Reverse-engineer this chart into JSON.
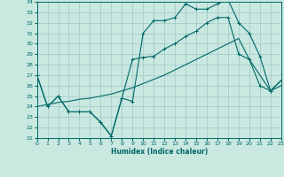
{
  "xlabel": "Humidex (Indice chaleur)",
  "bg_color": "#c8e8e0",
  "grid_color": "#a0c8c8",
  "line_color": "#006868",
  "xlim": [
    0,
    23
  ],
  "ylim": [
    21,
    34
  ],
  "xticks": [
    0,
    1,
    2,
    3,
    4,
    5,
    6,
    7,
    8,
    9,
    10,
    11,
    12,
    13,
    14,
    15,
    16,
    17,
    18,
    19,
    20,
    21,
    22,
    23
  ],
  "yticks": [
    21,
    22,
    23,
    24,
    25,
    26,
    27,
    28,
    29,
    30,
    31,
    32,
    33,
    34
  ],
  "line1_x": [
    0,
    1,
    2,
    3,
    4,
    5,
    6,
    7,
    8,
    9,
    10,
    11,
    12,
    13,
    14,
    15,
    16,
    17,
    18,
    19,
    20,
    21,
    22,
    23
  ],
  "line1_y": [
    27.0,
    24.0,
    25.0,
    23.5,
    23.5,
    23.5,
    22.5,
    21.2,
    24.8,
    24.5,
    31.0,
    32.2,
    32.2,
    32.5,
    33.8,
    33.3,
    33.3,
    33.8,
    34.2,
    32.0,
    31.0,
    28.8,
    25.5,
    26.5
  ],
  "line2_x": [
    0,
    1,
    2,
    3,
    4,
    5,
    6,
    7,
    8,
    9,
    10,
    11,
    12,
    13,
    14,
    15,
    16,
    17,
    18,
    19,
    20,
    21,
    22,
    23
  ],
  "line2_y": [
    24.0,
    24.2,
    24.4,
    24.5,
    24.7,
    24.8,
    25.0,
    25.2,
    25.5,
    25.8,
    26.2,
    26.6,
    27.0,
    27.5,
    28.0,
    28.5,
    29.0,
    29.5,
    30.0,
    30.5,
    28.5,
    27.0,
    25.5,
    26.0
  ],
  "line3_x": [
    0,
    1,
    2,
    3,
    4,
    5,
    6,
    7,
    8,
    9,
    10,
    11,
    12,
    13,
    14,
    15,
    16,
    17,
    18,
    19,
    20,
    21,
    22,
    23
  ],
  "line3_y": [
    27.0,
    24.0,
    25.0,
    23.5,
    23.5,
    23.5,
    22.5,
    21.2,
    24.8,
    28.5,
    28.7,
    28.8,
    29.5,
    30.0,
    30.7,
    31.2,
    32.0,
    32.5,
    32.5,
    29.0,
    28.5,
    26.0,
    25.5,
    26.5
  ]
}
